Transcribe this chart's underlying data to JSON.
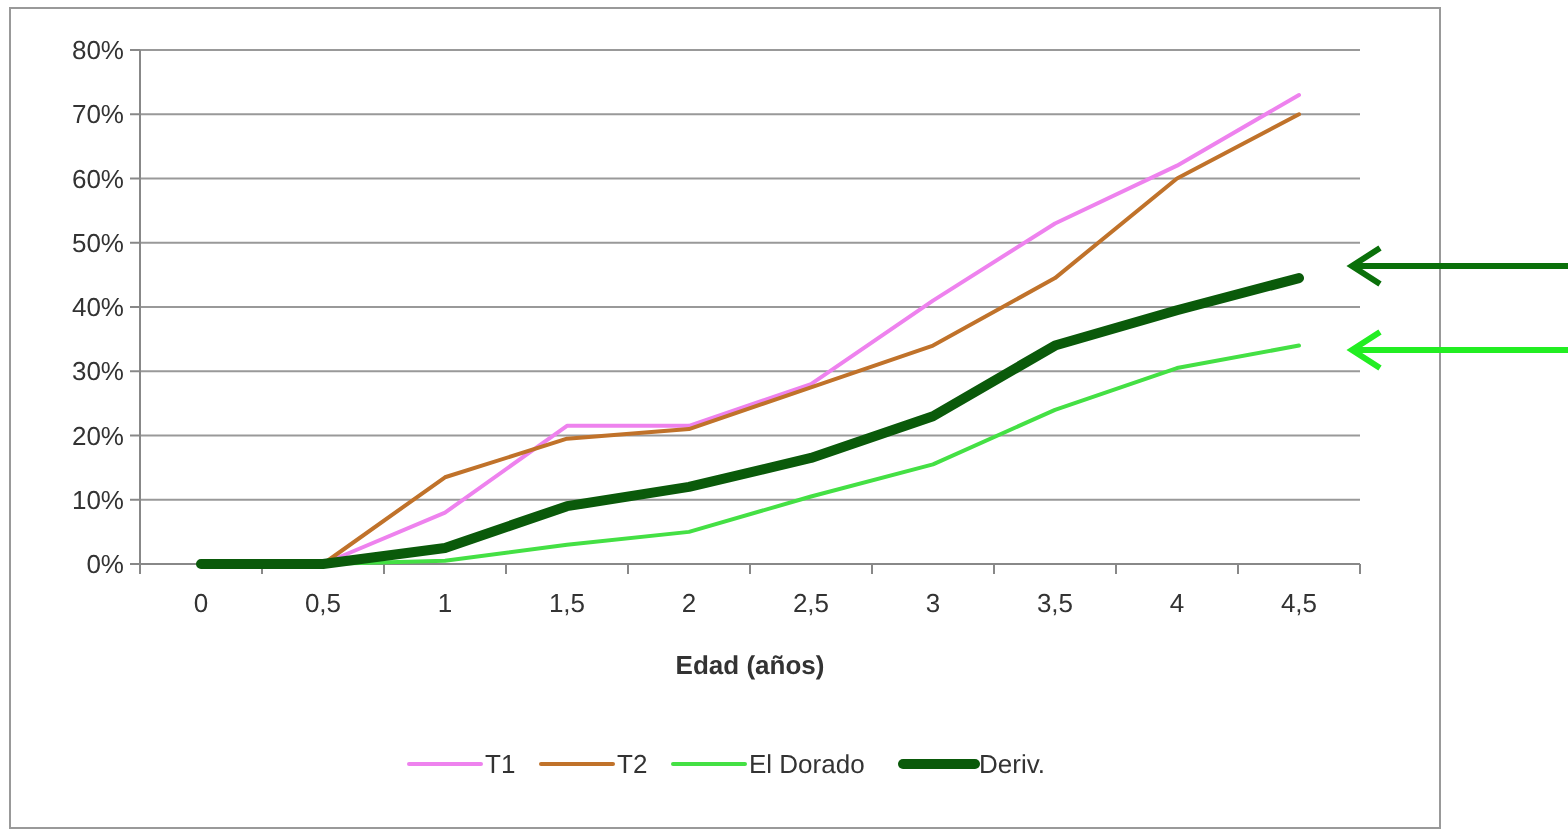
{
  "chart_data": {
    "type": "line",
    "xlabel": "Edad (años)",
    "categories": [
      "0",
      "0,5",
      "1",
      "1,5",
      "2",
      "2,5",
      "3",
      "3,5",
      "4",
      "4,5"
    ],
    "ylim": [
      0,
      80
    ],
    "yticks": [
      {
        "value": 0,
        "label": "0%"
      },
      {
        "value": 10,
        "label": "10%"
      },
      {
        "value": 20,
        "label": "20%"
      },
      {
        "value": 30,
        "label": "30%"
      },
      {
        "value": 40,
        "label": "40%"
      },
      {
        "value": 50,
        "label": "50%"
      },
      {
        "value": 60,
        "label": "60%"
      },
      {
        "value": 70,
        "label": "70%"
      },
      {
        "value": 80,
        "label": "80%"
      }
    ],
    "grid": "y",
    "legend": "bottom",
    "marker": "none",
    "series": [
      {
        "name": "T1",
        "color": "#ee82ee",
        "values": [
          0,
          0,
          8,
          21.5,
          21.5,
          28,
          41,
          53,
          62,
          73
        ]
      },
      {
        "name": "T2",
        "color": "#c0722a",
        "values": [
          0,
          0,
          13.5,
          19.5,
          21,
          27.5,
          34,
          44.5,
          60,
          70
        ]
      },
      {
        "name": "El Dorado",
        "color": "#44e044",
        "values": [
          0,
          0,
          0.5,
          3,
          5,
          10.5,
          15.5,
          24,
          30.5,
          34
        ]
      },
      {
        "name": "Deriv.",
        "color": "#0a5a0a",
        "values": [
          0,
          0,
          2.5,
          9,
          12,
          16.5,
          23,
          34,
          39.5,
          44.5
        ]
      }
    ]
  }
}
